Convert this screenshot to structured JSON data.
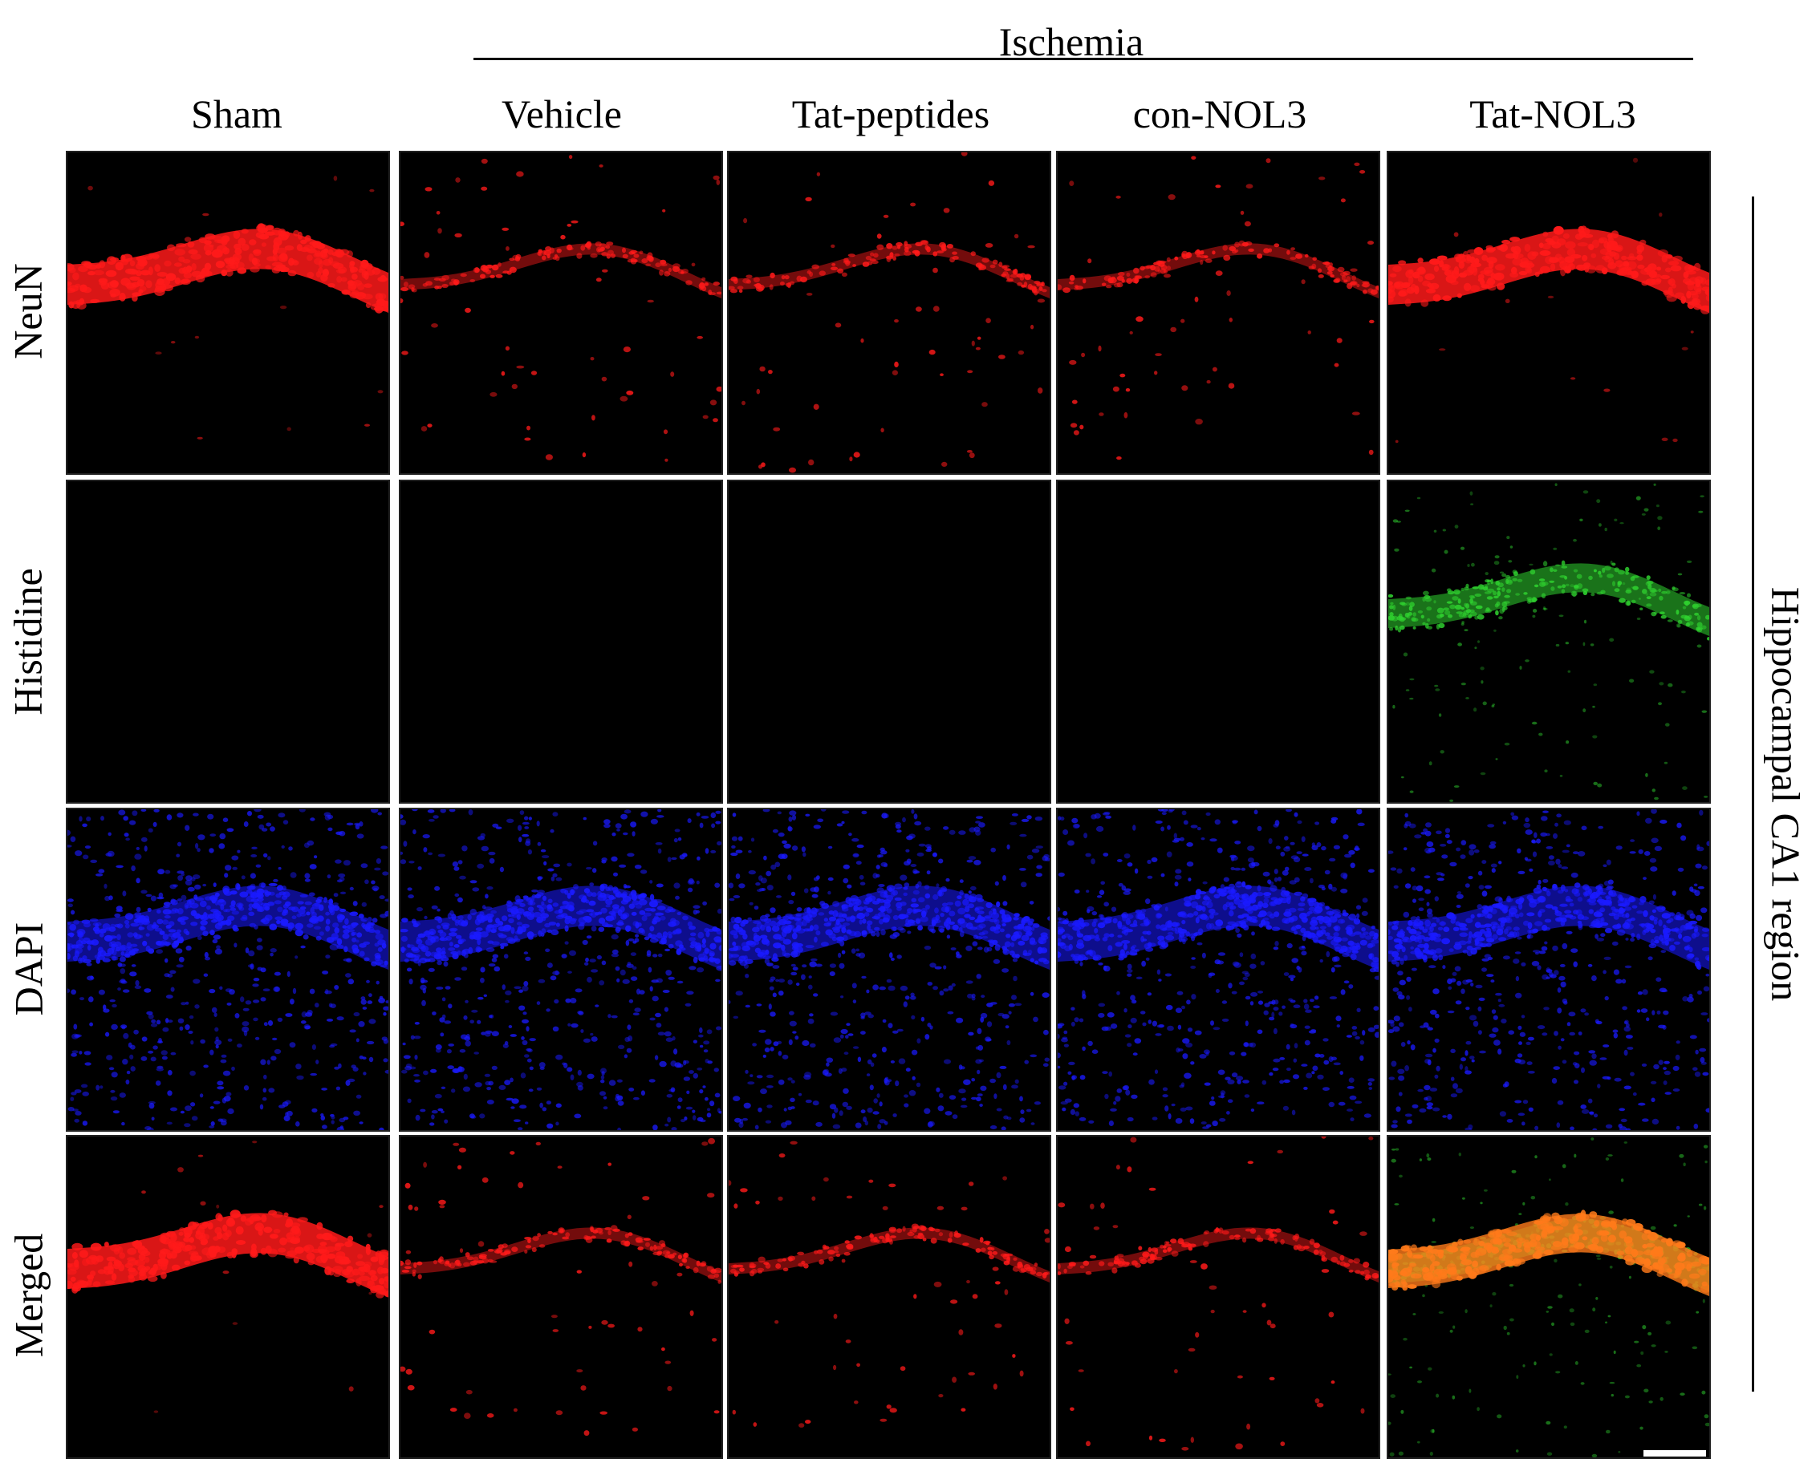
{
  "figure": {
    "group_label": "Ischemia",
    "columns": [
      {
        "label": "Sham"
      },
      {
        "label": "Vehicle"
      },
      {
        "label": "Tat-peptides"
      },
      {
        "label": "con-NOL3"
      },
      {
        "label": "Tat-NOL3"
      }
    ],
    "rows": [
      {
        "label": "NeuN"
      },
      {
        "label": "Histidine"
      },
      {
        "label": "DAPI"
      },
      {
        "label": "Merged"
      }
    ],
    "region_label": "Hippocampal CA1 region"
  },
  "colors": {
    "neun": "#ff1a1a",
    "histidine": "#2fd12f",
    "dapi": "#1a1aff",
    "merged_overlap": "#ff7a1a",
    "panel_background": "#000000"
  },
  "panel_signal": {
    "NeuN": {
      "Sham": "strong band",
      "Vehicle": "weak band",
      "Tat-peptides": "weak band",
      "con-NOL3": "weak band",
      "Tat-NOL3": "strong band"
    },
    "Histidine": {
      "Sham": "none",
      "Vehicle": "none",
      "Tat-peptides": "none",
      "con-NOL3": "none",
      "Tat-NOL3": "band"
    }
  }
}
